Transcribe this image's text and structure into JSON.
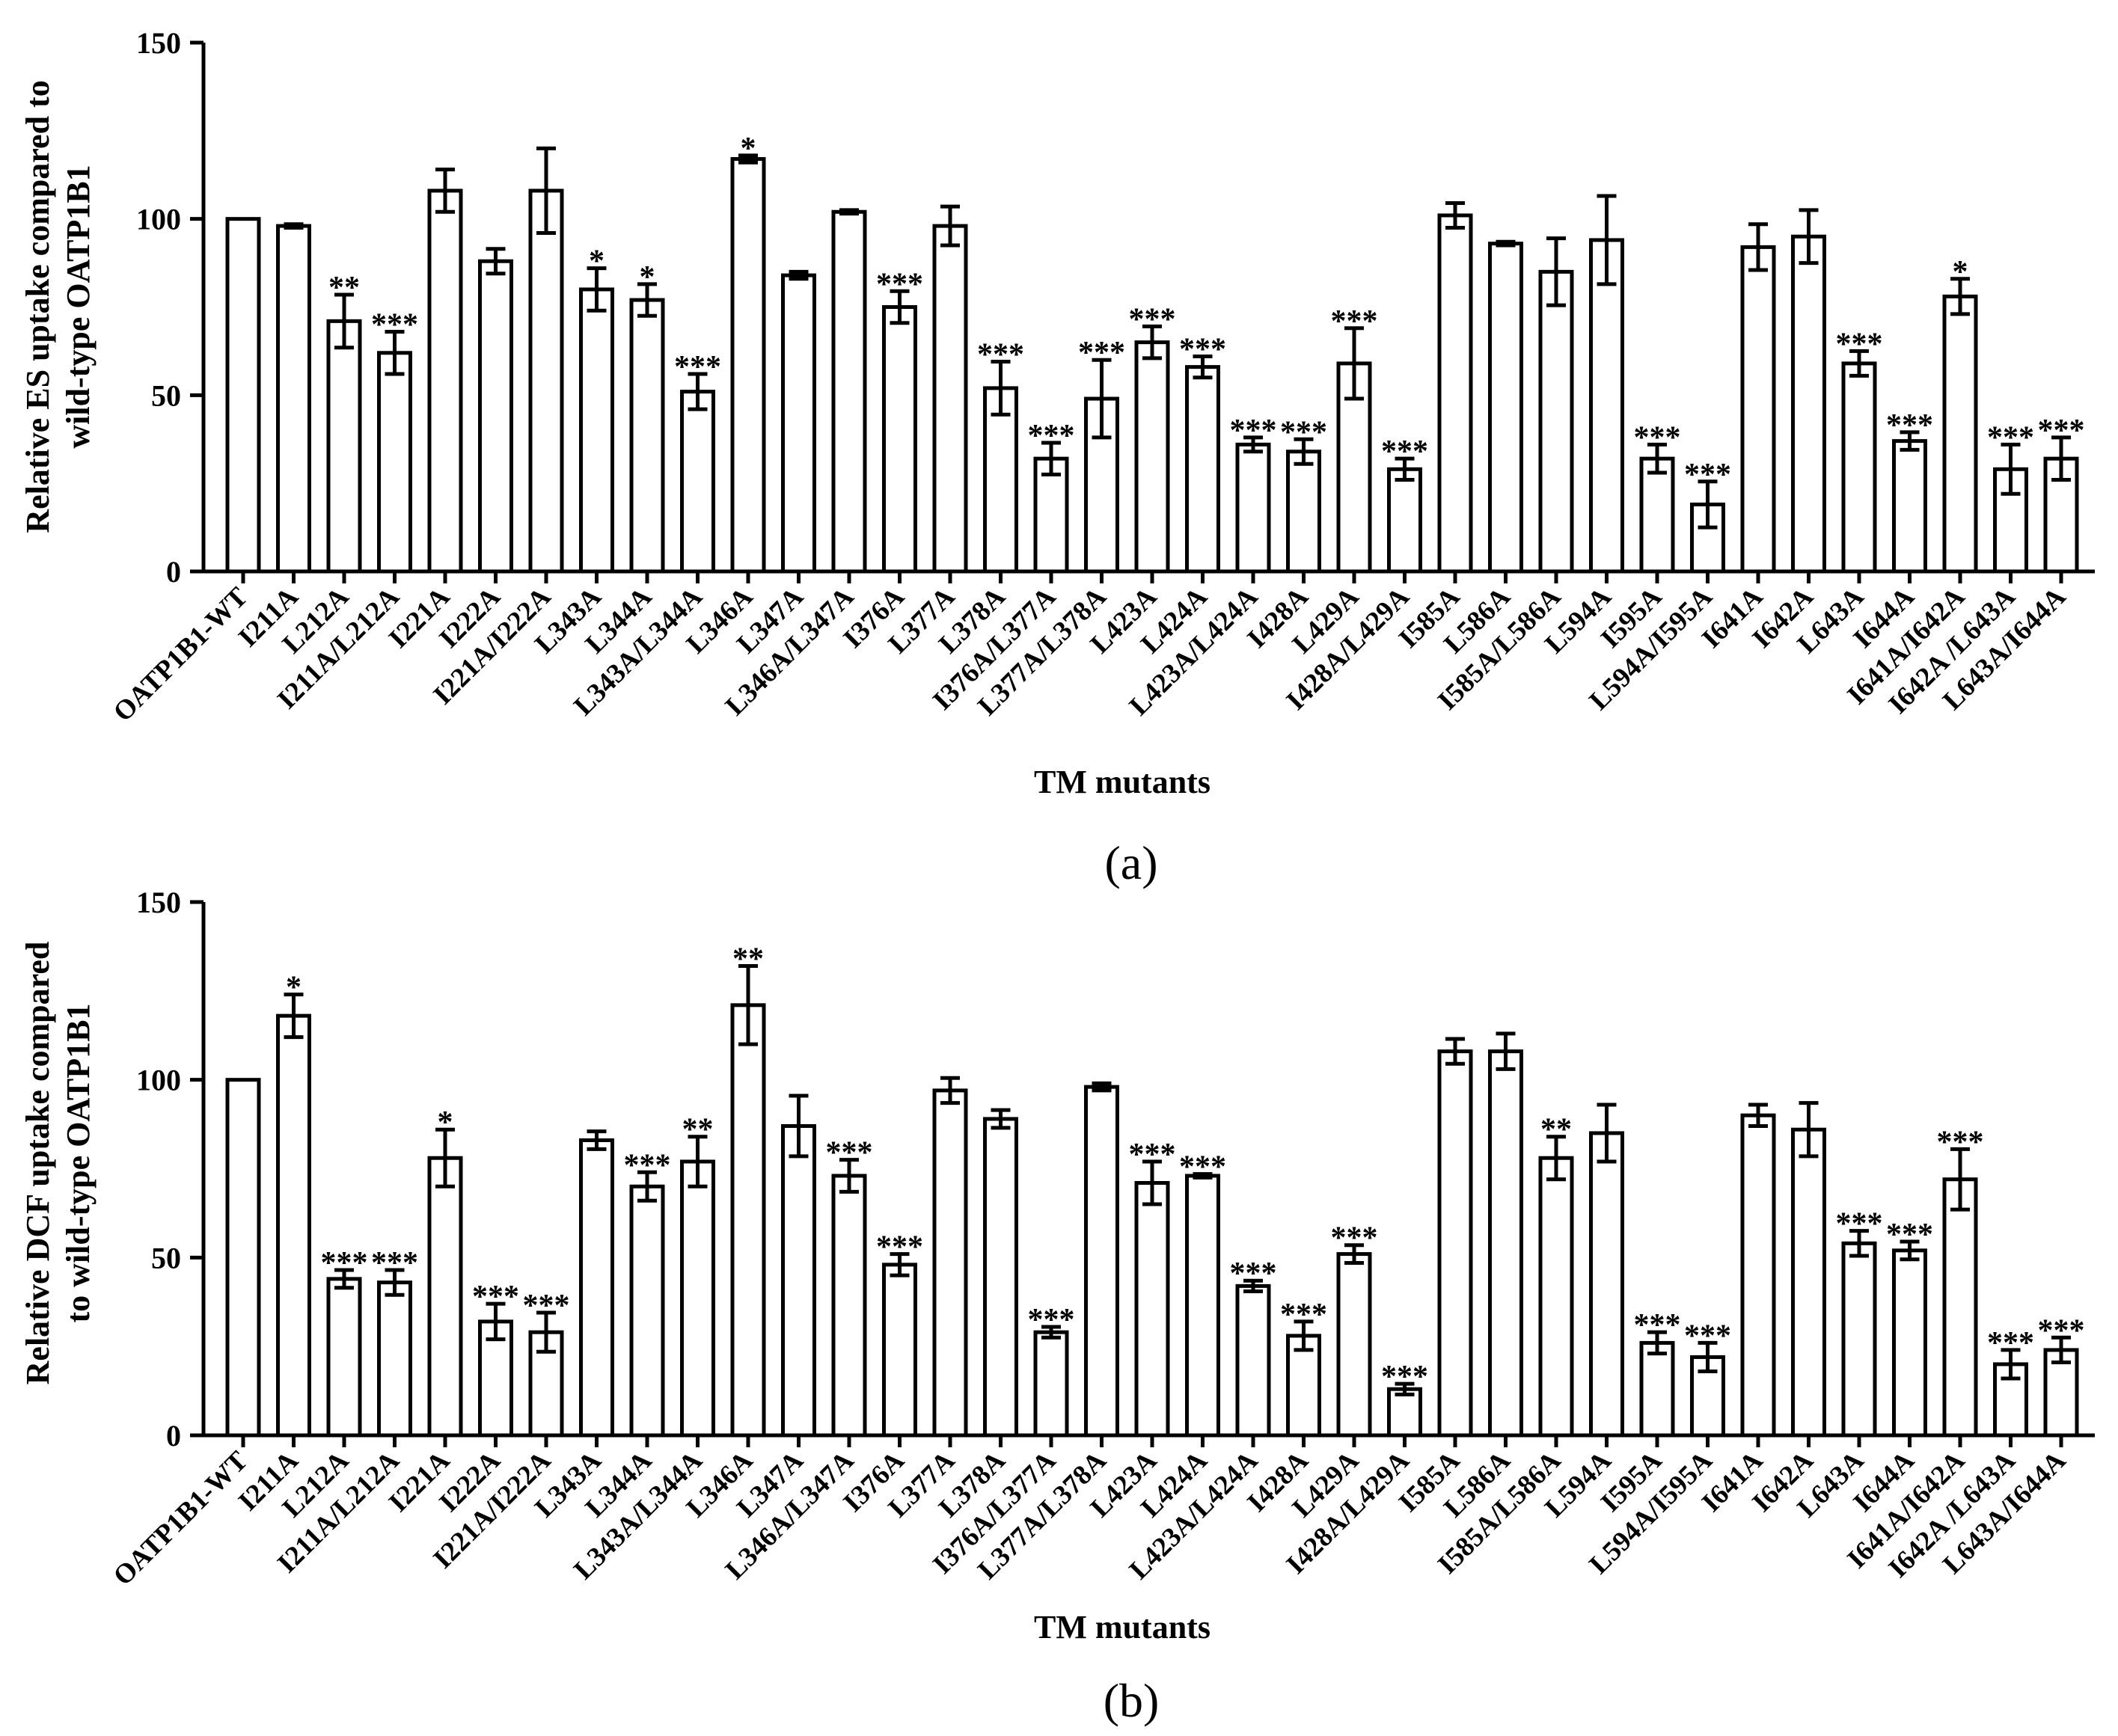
{
  "chart_data": [
    {
      "type": "bar",
      "panel_label": "(a)",
      "title": "",
      "xlabel": "TM mutants",
      "ylabel": [
        "Relative ES uptake compared to",
        "wild-type OATP1B1"
      ],
      "ylim": [
        0,
        150
      ],
      "yticks": [
        "0",
        "50",
        "100",
        "150"
      ],
      "categories": [
        "OATP1B1-WT",
        "I211A",
        "L212A",
        "I211A/L212A",
        "I221A",
        "I222A",
        "I221A/I222A",
        "L343A",
        "L344A",
        "L343A/L344A",
        "L346A",
        "L347A",
        "L346A/L347A",
        "I376A",
        "L377A",
        "L378A",
        "I376A/L377A",
        "L377A/L378A",
        "L423A",
        "L424A",
        "L423A/L424A",
        "I428A",
        "L429A",
        "I428A/L429A",
        "I585A",
        "L586A",
        "I585A/L586A",
        "L594A",
        "I595A",
        "L594A/I595A",
        "I641A",
        "I642A",
        "L643A",
        "I644A",
        "I641A/I642A",
        "I642A /L643A",
        "L643A/I644A"
      ],
      "values": [
        100,
        98,
        71,
        62,
        108,
        88,
        108,
        80,
        77,
        51,
        117,
        84,
        102,
        75,
        98,
        52,
        32,
        49,
        65,
        58,
        36,
        34,
        59,
        29,
        101,
        93,
        85,
        94,
        32,
        19,
        92,
        95,
        59,
        37,
        78,
        29,
        32
      ],
      "errors": [
        0,
        0.5,
        7.5,
        6,
        6,
        3.5,
        12,
        6,
        4.5,
        5,
        1,
        1,
        0.5,
        4.5,
        5.5,
        7.5,
        4.5,
        11,
        4.5,
        3,
        2,
        3.5,
        10,
        3,
        3.5,
        0.5,
        9.5,
        12.5,
        4,
        6.5,
        6.5,
        7.5,
        3.5,
        2.5,
        5,
        7,
        6
      ],
      "significance": [
        "",
        "",
        "**",
        "***",
        "",
        "",
        "",
        "*",
        "*",
        "***",
        "*",
        "",
        "",
        "***",
        "",
        "***",
        "***",
        "***",
        "***",
        "***",
        "***",
        "***",
        "***",
        "***",
        "",
        "",
        "",
        "",
        "***",
        "***",
        "",
        "",
        "***",
        "***",
        "*",
        "***",
        "***"
      ]
    },
    {
      "type": "bar",
      "panel_label": "(b)",
      "title": "",
      "xlabel": "TM mutants",
      "ylabel": [
        "Relative DCF uptake compared",
        "to wild-type OATP1B1"
      ],
      "ylim": [
        0,
        150
      ],
      "yticks": [
        "0",
        "50",
        "100",
        "150"
      ],
      "categories": [
        "OATP1B1-WT",
        "I211A",
        "L212A",
        "I211A/L212A",
        "I221A",
        "I222A",
        "I221A/I222A",
        "L343A",
        "L344A",
        "L343A/L344A",
        "L346A",
        "L347A",
        "L346A/L347A",
        "I376A",
        "L377A",
        "L378A",
        "I376A/L377A",
        "L377A/L378A",
        "L423A",
        "L424A",
        "L423A/L424A",
        "I428A",
        "L429A",
        "I428A/L429A",
        "I585A",
        "L586A",
        "I585A/L586A",
        "L594A",
        "I595A",
        "L594A/I595A",
        "I641A",
        "I642A",
        "L643A",
        "I644A",
        "I641A/I642A",
        "I642A /L643A",
        "L643A/I644A"
      ],
      "values": [
        100,
        118,
        44,
        43,
        78,
        32,
        29,
        83,
        70,
        77,
        121,
        87,
        73,
        48,
        97,
        89,
        29,
        98,
        71,
        73,
        42,
        28,
        51,
        13,
        108,
        108,
        78,
        85,
        26,
        22,
        90,
        86,
        54,
        52,
        72,
        20,
        24
      ],
      "errors": [
        0,
        6,
        2.5,
        3.5,
        8,
        5,
        5.5,
        2.5,
        4,
        7,
        11,
        8.5,
        4.5,
        3,
        3.5,
        2.5,
        1.5,
        1,
        6,
        0.5,
        1.5,
        4,
        2.5,
        1.5,
        3.5,
        5,
        6,
        8,
        3,
        4,
        3,
        7.5,
        3.5,
        2.5,
        8.5,
        4,
        3.5
      ],
      "significance": [
        "",
        "*",
        "***",
        "***",
        "*",
        "***",
        "***",
        "",
        "***",
        "**",
        "**",
        "",
        "***",
        "***",
        "",
        "",
        "***",
        "",
        "***",
        "***",
        "***",
        "***",
        "***",
        "***",
        "",
        "",
        "**",
        "",
        "***",
        "***",
        "",
        "",
        "***",
        "***",
        "***",
        "***",
        "***"
      ]
    }
  ]
}
